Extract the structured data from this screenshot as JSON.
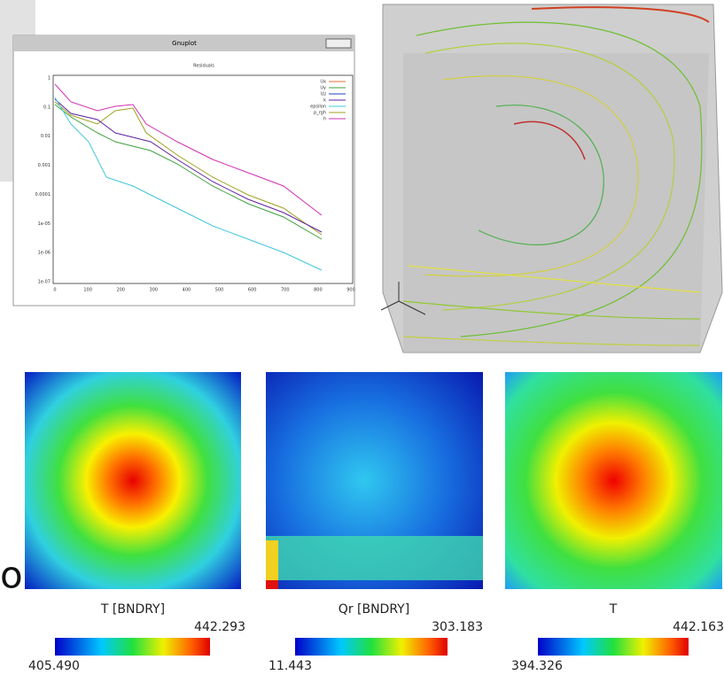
{
  "fragment_text": "or",
  "residuals_plot": {
    "window_title": "Gnuplot",
    "title": "Residuals",
    "yticks": [
      "1",
      "0.1",
      "0.01",
      "0.001",
      "0.0001",
      "1e-05",
      "1e-06",
      "1e-07"
    ],
    "xticks": [
      "0",
      "100",
      "200",
      "300",
      "400",
      "500",
      "600",
      "700",
      "800",
      "900"
    ],
    "legend": [
      "Ux",
      "Uy",
      "Uz",
      "k",
      "epsilon",
      "p_rgh",
      "h"
    ]
  },
  "panels": [
    {
      "label": "T [BNDRY]",
      "max": "442.293",
      "min": "405.490"
    },
    {
      "label": "Qr [BNDRY]",
      "max": "303.183",
      "min": "11.443"
    },
    {
      "label": "T",
      "max": "442.163",
      "min": "394.326"
    }
  ]
}
